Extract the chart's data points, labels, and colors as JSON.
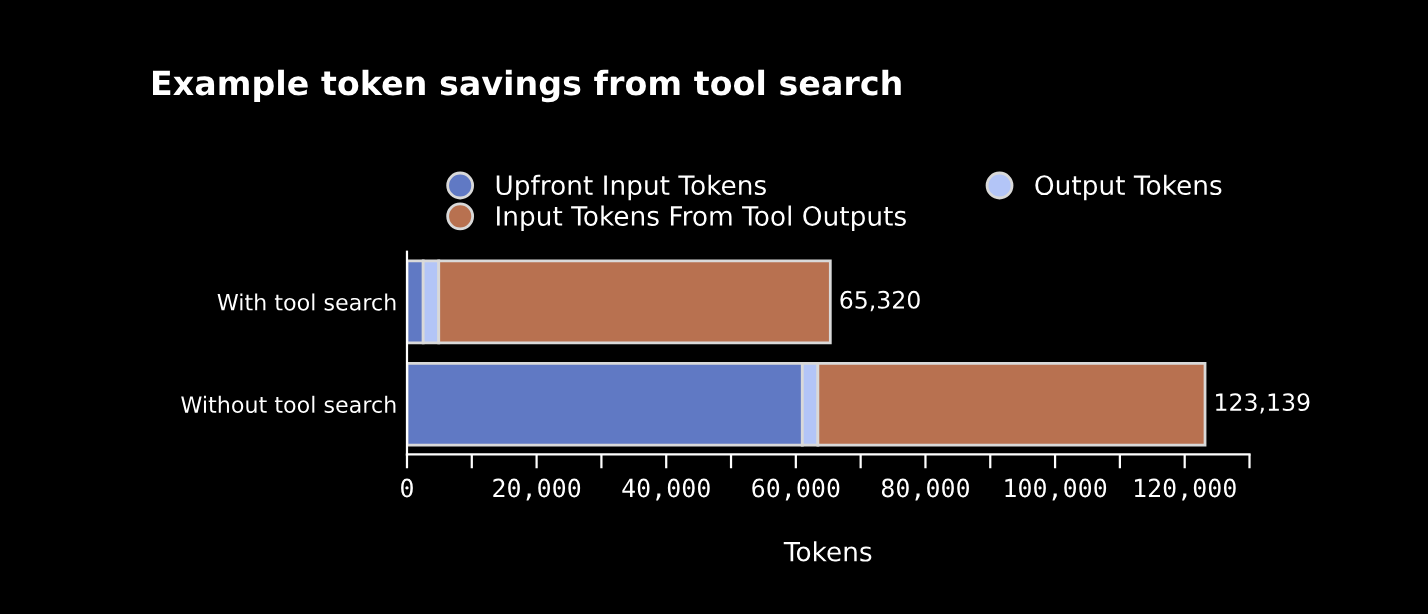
{
  "chart_data": {
    "type": "bar",
    "orientation": "horizontal",
    "stacked": true,
    "title": "Example token savings from tool search",
    "xlabel": "Tokens",
    "categories": [
      "With tool search",
      "Without tool search"
    ],
    "series": [
      {
        "name": "Upfront Input Tokens",
        "color": "#6079c4",
        "values": [
          2500,
          61000
        ]
      },
      {
        "name": "Output Tokens",
        "color": "#b3c5f7",
        "values": [
          2400,
          2400
        ]
      },
      {
        "name": "Input Tokens From Tool Outputs",
        "color": "#b87150",
        "values": [
          60420,
          59739
        ]
      }
    ],
    "totals": [
      "65,320",
      "123,139"
    ],
    "xlim": [
      0,
      130000
    ],
    "xticks": [
      0,
      {
        "value": 10000,
        "label": null
      },
      {
        "value": 20000,
        "label": "20,000"
      },
      {
        "value": 30000,
        "label": null
      },
      {
        "value": 40000,
        "label": "40,000"
      },
      {
        "value": 50000,
        "label": null
      },
      {
        "value": 60000,
        "label": "60,000"
      },
      {
        "value": 70000,
        "label": null
      },
      {
        "value": 80000,
        "label": "80,000"
      },
      {
        "value": 90000,
        "label": null
      },
      {
        "value": 100000,
        "label": "100,000"
      },
      {
        "value": 110000,
        "label": null
      },
      {
        "value": 120000,
        "label": "120,000"
      },
      {
        "value": 130000,
        "label": null
      }
    ],
    "legend": "top",
    "grid": false
  }
}
